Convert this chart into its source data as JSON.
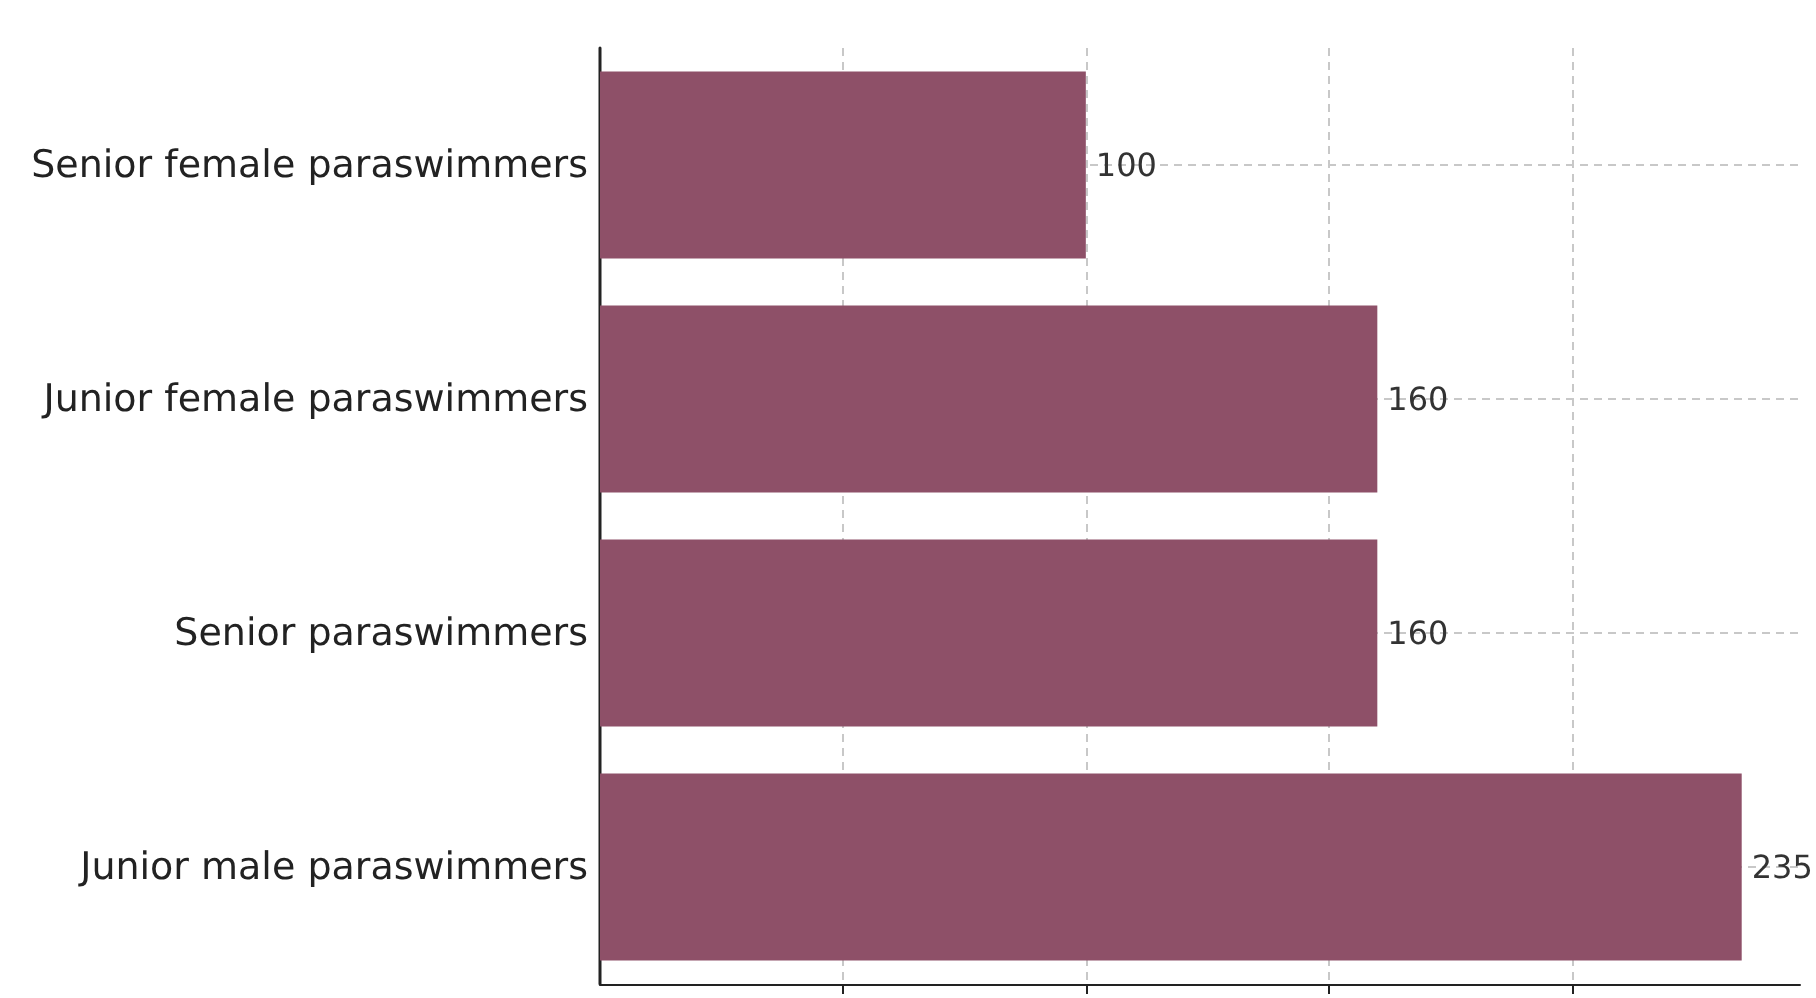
{
  "chart_data": {
    "type": "bar",
    "orientation": "horizontal",
    "categories": [
      "Senior female paraswimmers",
      "Junior female paraswimmers",
      "Senior paraswimmers",
      "Junior male paraswimmers"
    ],
    "values": [
      100,
      160,
      160,
      235
    ],
    "color": "#8e5068",
    "xlim": [
      0,
      247
    ],
    "xticks": [
      {
        "value": 50,
        "label": null
      },
      {
        "value": 100,
        "label": null
      },
      {
        "value": 150,
        "label": null
      },
      {
        "value": 200,
        "label": null
      }
    ],
    "tick_labels": "y",
    "grid": true,
    "data_labels": true
  }
}
